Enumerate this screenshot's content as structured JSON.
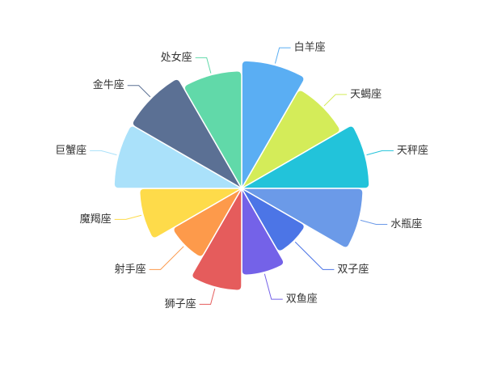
{
  "chart_data": {
    "type": "pie",
    "variant": "rose",
    "slices": [
      {
        "label": "白羊座",
        "value": 100,
        "color": "#5aaef3"
      },
      {
        "label": "天蝎座",
        "value": 90,
        "color": "#d4ec59"
      },
      {
        "label": "天秤座",
        "value": 100,
        "color": "#22c3da"
      },
      {
        "label": "水瓶座",
        "value": 95,
        "color": "#6b9ae8"
      },
      {
        "label": "双子座",
        "value": 58,
        "color": "#4c75e6"
      },
      {
        "label": "双鱼座",
        "value": 68,
        "color": "#7462e8"
      },
      {
        "label": "狮子座",
        "value": 80,
        "color": "#e55c5c"
      },
      {
        "label": "射手座",
        "value": 63,
        "color": "#fd9a4b"
      },
      {
        "label": "魔羯座",
        "value": 80,
        "color": "#fedb4a"
      },
      {
        "label": "巨蟹座",
        "value": 100,
        "color": "#aae1fa"
      },
      {
        "label": "金牛座",
        "value": 100,
        "color": "#5b7094"
      },
      {
        "label": "处女座",
        "value": 92,
        "color": "#61d9a9"
      }
    ]
  }
}
